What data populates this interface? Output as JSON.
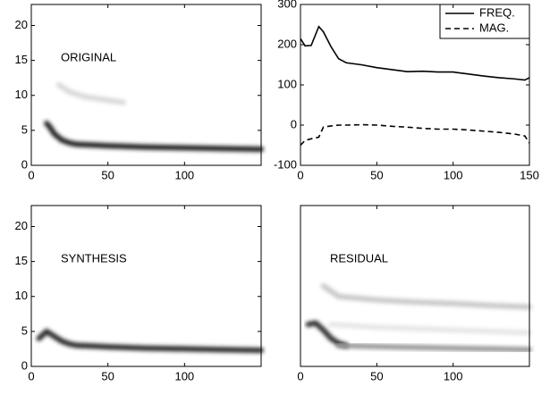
{
  "chart_data": [
    {
      "type": "spectrogram",
      "label": "ORIGINAL",
      "xlim": [
        0,
        150
      ],
      "xticks": [
        0,
        50,
        100
      ],
      "ylim": [
        0,
        23
      ],
      "yticks": [
        0,
        5,
        10,
        15,
        20
      ],
      "traces": [
        {
          "x": [
            10,
            12,
            15,
            20,
            25,
            30,
            40,
            50,
            75,
            100,
            125,
            150
          ],
          "y": [
            6,
            5.5,
            4.5,
            3.6,
            3.2,
            3,
            2.9,
            2.8,
            2.6,
            2.5,
            2.4,
            2.3
          ],
          "color": "#222222"
        },
        {
          "x": [
            18,
            25,
            35,
            50,
            60
          ],
          "y": [
            11.5,
            10.5,
            9.8,
            9.3,
            9
          ],
          "color": "#d8d8d8"
        }
      ]
    },
    {
      "type": "line",
      "legend": "upper right",
      "x": [
        0,
        3,
        7,
        12,
        15,
        20,
        25,
        30,
        40,
        50,
        60,
        70,
        80,
        90,
        100,
        110,
        120,
        130,
        140,
        147,
        150
      ],
      "xlim": [
        0,
        150
      ],
      "xticks": [
        0,
        50,
        100,
        150
      ],
      "ylim": [
        -100,
        300
      ],
      "yticks": [
        -100,
        0,
        100,
        200,
        300
      ],
      "series": [
        {
          "name": "FREQ.",
          "color": "#000000",
          "line_style": "solid",
          "values": [
            215,
            197,
            198,
            245,
            232,
            195,
            165,
            155,
            150,
            143,
            138,
            133,
            134,
            132,
            132,
            127,
            122,
            118,
            115,
            112,
            118
          ]
        },
        {
          "name": "MAG.",
          "color": "#000000",
          "line_style": "dashed",
          "values": [
            -50,
            -38,
            -34,
            -30,
            -5,
            -2,
            0,
            0,
            1,
            0,
            -3,
            -5,
            -8,
            -10,
            -10,
            -12,
            -15,
            -18,
            -22,
            -27,
            -45
          ]
        }
      ]
    },
    {
      "type": "spectrogram",
      "label": "SYNTHESIS",
      "xlim": [
        0,
        150
      ],
      "xticks": [
        0,
        50,
        100
      ],
      "ylim": [
        0,
        23
      ],
      "yticks": [
        0,
        5,
        10,
        15,
        20
      ],
      "traces": [
        {
          "x": [
            5,
            10,
            15,
            20,
            25,
            30,
            40,
            50,
            75,
            100,
            125,
            150
          ],
          "y": [
            4,
            5,
            4.3,
            3.6,
            3.2,
            3,
            2.9,
            2.8,
            2.6,
            2.5,
            2.4,
            2.3
          ],
          "color": "#2a2a2a"
        }
      ]
    },
    {
      "type": "spectrogram",
      "label": "RESIDUAL",
      "xlim": [
        0,
        150
      ],
      "xticks": [
        0,
        50,
        100
      ],
      "ylim": [
        0,
        23
      ],
      "traces": [
        {
          "x": [
            15,
            25,
            50,
            75,
            100,
            125,
            150
          ],
          "y": [
            11.5,
            10,
            9.5,
            9.2,
            9,
            8.7,
            8.5
          ],
          "color": "#c8c8c8"
        },
        {
          "x": [
            20,
            50,
            100,
            150
          ],
          "y": [
            6,
            5.6,
            5.2,
            4.8
          ],
          "color": "#e6e6e6"
        },
        {
          "x": [
            5,
            10,
            15,
            20,
            25,
            30
          ],
          "y": [
            6,
            6.2,
            5.2,
            4,
            3.3,
            3
          ],
          "color": "#333333"
        },
        {
          "x": [
            25,
            40,
            60,
            80,
            100,
            125,
            150
          ],
          "y": [
            3,
            2.9,
            2.8,
            2.7,
            2.6,
            2.5,
            2.4
          ],
          "color": "#9a9a9a"
        }
      ]
    }
  ]
}
